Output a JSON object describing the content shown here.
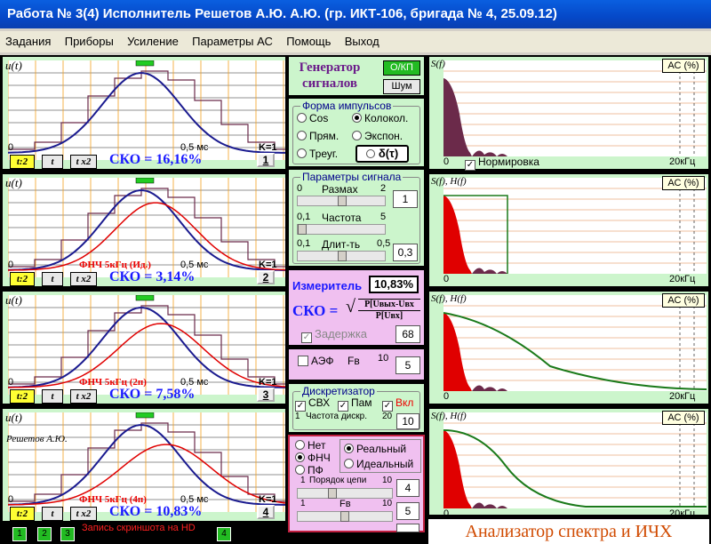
{
  "window_title": "Работа № 3(4)  Исполнитель Решетов А.Ю.  А.Ю. (гр. ИКТ-106, бригада № 4, 25.09.12)",
  "menu": [
    "Задания",
    "Приборы",
    "Усиление",
    "Параметры АС",
    "Помощь",
    "Выход"
  ],
  "left_panels": [
    {
      "ylabel": "u(t)",
      "x0": "0",
      "xmid": "0,5 мс",
      "k": "K=1",
      "b1": "t:2",
      "b2": "t",
      "b3": "t x2",
      "sko": "СКО = 16,16%",
      "filter": "",
      "num": "1"
    },
    {
      "ylabel": "u(t)",
      "x0": "0",
      "xmid": "0,5 мс",
      "k": "K=1",
      "b1": "t:2",
      "b2": "t",
      "b3": "t x2",
      "sko": "СКО = 3,14%",
      "filter": "ФНЧ 5кГц (Ид.)",
      "num": "2"
    },
    {
      "ylabel": "u(t)",
      "x0": "0",
      "xmid": "0,5 мс",
      "k": "K=1",
      "b1": "t:2",
      "b2": "t",
      "b3": "t x2",
      "sko": "СКО = 7,58%",
      "filter": "ФНЧ 5кГц (2п)",
      "num": "3"
    },
    {
      "ylabel": "u(t)",
      "x0": "0",
      "xmid": "0,5 мс",
      "k": "K=1",
      "b1": "t:2",
      "b2": "t",
      "b3": "t x2",
      "sko": "СКО = 10,83%",
      "filter": "ФНЧ 5кГц (4п)",
      "num": "4",
      "watermark": "Решетов А.Ю."
    }
  ],
  "bottom_bar": {
    "buttons": [
      "1",
      "2",
      "3",
      "4"
    ],
    "status": "Запись скриншота на HD"
  },
  "generator": {
    "title1": "Генератор",
    "title2": "сигналов",
    "ok": "О/КП",
    "noise": "Шум"
  },
  "pulse_shape": {
    "legend": "Форма  импульсов",
    "cos": "Cos",
    "bell": "Колокол.",
    "rect": "Прям.",
    "exp": "Экспон.",
    "tri": "Треуг.",
    "delta": "δ(τ)"
  },
  "signal_params": {
    "legend": "Параметры сигнала",
    "amp_label": "Размах",
    "amp_min": "0",
    "amp_max": "2",
    "amp_val": "1",
    "freq_label": "Частота",
    "freq_min": "0,1",
    "freq_max": "5",
    "dur_label": "Длит-ть",
    "dur_min": "0,1",
    "dur_max": "0,5",
    "dur_val": "0,3"
  },
  "meter": {
    "title": "Измеритель",
    "value": "10,83%",
    "sko": "СКО =",
    "num": "P[Uвых-Uвх",
    "den": "P[Uвх]",
    "delay": "Задержка",
    "delay_val": "68"
  },
  "aef": {
    "label": "АЭФ",
    "fv": "Fв",
    "max": "10",
    "val": "5"
  },
  "discretizer": {
    "legend": "Дискретизатор",
    "svh": "СВХ",
    "pam": "Пам",
    "vkl": "Вкл",
    "min": "1",
    "label": "Частота дискр.",
    "max": "20",
    "val": "10"
  },
  "filter_box": {
    "none": "Нет",
    "lpf": "ФНЧ",
    "bpf": "ПФ",
    "real": "Реальный",
    "ideal": "Идеальный",
    "order_label": "Порядок цепи",
    "order_min": "1",
    "order_max": "10",
    "order_val": "4",
    "fv_min": "1",
    "fv_label": "Fв",
    "fv_max": "10",
    "fv_val": "5"
  },
  "right_panels": [
    {
      "ylabel": "S(f)",
      "ac": "АС (%)",
      "x0": "0",
      "xmax": "20кГц",
      "norm": "Нормировка"
    },
    {
      "ylabel": "S(f), H(f)",
      "ac": "АС (%)",
      "x0": "0",
      "xmax": "20кГц"
    },
    {
      "ylabel": "S(f), H(f)",
      "ac": "АС (%)",
      "x0": "0",
      "xmax": "20кГц"
    },
    {
      "ylabel": "S(f), H(f)",
      "ac": "АС (%)",
      "x0": "0",
      "xmax": "20кГц"
    }
  ],
  "analyzer_title": "Анализатор спектра и ИЧХ",
  "colors": {
    "panel_bg": "#ccf5cc",
    "title_blue": "#0548c8",
    "sko_blue": "#1a1aff",
    "filter_red": "#e00000",
    "spectrum": "#6b2a4a",
    "signal_blue": "#1a1a8f",
    "output_red": "#e00000",
    "hf_green": "#1a7a1a"
  }
}
